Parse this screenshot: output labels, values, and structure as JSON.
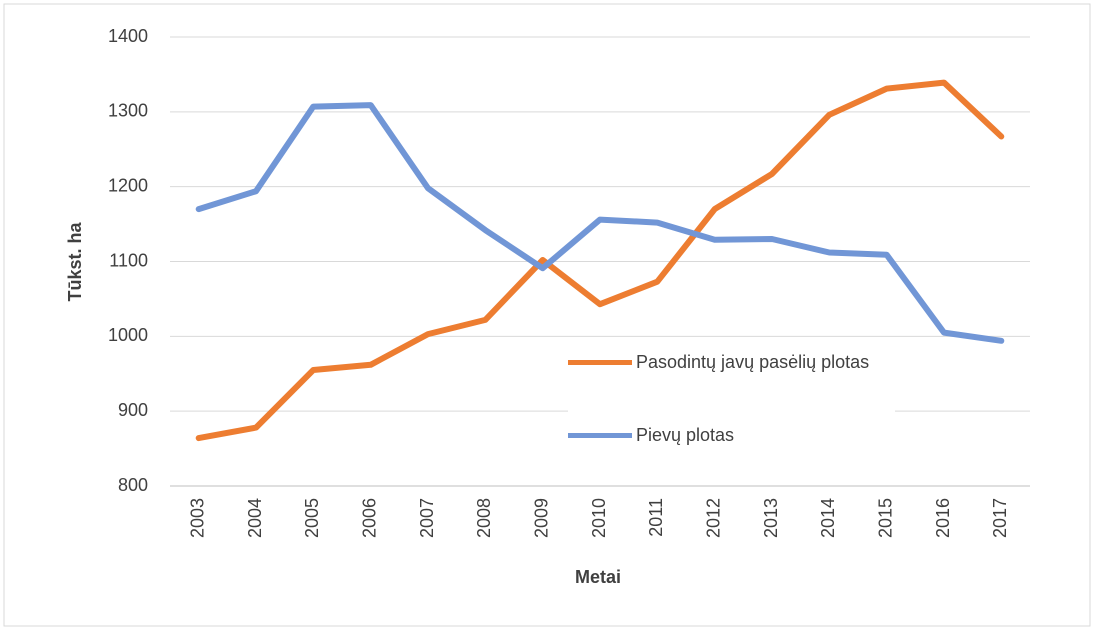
{
  "chart_data": {
    "type": "line",
    "y_label": "Tūkst. ha",
    "x_label": "Metai",
    "categories": [
      "2003",
      "2004",
      "2005",
      "2006",
      "2007",
      "2008",
      "2009",
      "2010",
      "2011",
      "2012",
      "2013",
      "2014",
      "2015",
      "2016",
      "2017"
    ],
    "series": [
      {
        "name": "Pasodintų javų pasėlių plotas",
        "color": "#ed7d31",
        "values": [
          864,
          878,
          955,
          962,
          1003,
          1022,
          1102,
          1043,
          1073,
          1170,
          1217,
          1296,
          1331,
          1339,
          1267
        ]
      },
      {
        "name": "Pievų plotas",
        "color": "#7196d6",
        "values": [
          1170,
          1194,
          1307,
          1309,
          1198,
          1142,
          1091,
          1156,
          1152,
          1129,
          1130,
          1112,
          1109,
          1005,
          994
        ]
      }
    ],
    "ylim": [
      800,
      1400
    ],
    "yticks": [
      800,
      900,
      1000,
      1100,
      1200,
      1300,
      1400
    ],
    "grid": true
  }
}
